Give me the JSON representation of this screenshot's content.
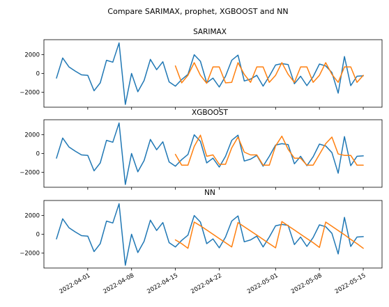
{
  "figure": {
    "suptitle": "Compare SARIMAX, prophet, XGBOOST and NN"
  },
  "colors": {
    "actual": "#1f77b4",
    "forecast": "#ff7f0e"
  },
  "chart_data": [
    {
      "type": "line",
      "title": "SARIMAX",
      "xlim": [
        "2022-03-25",
        "2022-05-18"
      ],
      "ylim": [
        -3600,
        3600
      ],
      "yticks": [
        -2000,
        0,
        2000
      ],
      "series": [
        {
          "x": [
            "2022-03-27",
            "2022-03-28",
            "2022-03-29",
            "2022-03-30",
            "2022-03-31",
            "2022-04-01",
            "2022-04-02",
            "2022-04-03",
            "2022-04-04",
            "2022-04-05",
            "2022-04-06",
            "2022-04-07",
            "2022-04-08",
            "2022-04-09",
            "2022-04-10",
            "2022-04-11",
            "2022-04-12",
            "2022-04-13",
            "2022-04-14",
            "2022-04-15",
            "2022-04-16",
            "2022-04-17",
            "2022-04-18",
            "2022-04-19",
            "2022-04-20",
            "2022-04-21",
            "2022-04-22",
            "2022-04-23",
            "2022-04-24",
            "2022-04-25",
            "2022-04-26",
            "2022-04-27",
            "2022-04-28",
            "2022-04-29",
            "2022-04-30",
            "2022-05-01",
            "2022-05-02",
            "2022-05-03",
            "2022-05-04",
            "2022-05-05",
            "2022-05-06",
            "2022-05-07",
            "2022-05-08",
            "2022-05-09",
            "2022-05-10",
            "2022-05-11",
            "2022-05-12",
            "2022-05-13",
            "2022-05-14",
            "2022-05-15"
          ],
          "values": [
            -500,
            1650,
            700,
            250,
            -150,
            -200,
            -1850,
            -1000,
            1400,
            1200,
            3250,
            -3300,
            0,
            -1950,
            -750,
            1500,
            400,
            1250,
            -900,
            -1350,
            -650,
            -100,
            2000,
            1300,
            -1000,
            -500,
            -1450,
            -300,
            1400,
            1950,
            -800,
            -600,
            -200,
            -1350,
            -300,
            900,
            1050,
            950,
            -1100,
            -300,
            -1300,
            -350,
            1000,
            800,
            100,
            -2100,
            1800,
            -1300,
            -300,
            -250
          ]
        },
        {
          "x": [
            "2022-04-15",
            "2022-04-16",
            "2022-04-17",
            "2022-04-18",
            "2022-04-19",
            "2022-04-20",
            "2022-04-21",
            "2022-04-22",
            "2022-04-23",
            "2022-04-24",
            "2022-04-25",
            "2022-04-26",
            "2022-04-27",
            "2022-04-28",
            "2022-04-29",
            "2022-04-30",
            "2022-05-01",
            "2022-05-02",
            "2022-05-03",
            "2022-05-04",
            "2022-05-05",
            "2022-05-06",
            "2022-05-07",
            "2022-05-08",
            "2022-05-09",
            "2022-05-10",
            "2022-05-11",
            "2022-05-12",
            "2022-05-13",
            "2022-05-14",
            "2022-05-15"
          ],
          "values": [
            800,
            -1000,
            -200,
            1150,
            -200,
            -1050,
            700,
            700,
            -1000,
            -950,
            1150,
            -100,
            -950,
            700,
            700,
            -950,
            -200,
            1150,
            -100,
            -950,
            700,
            700,
            -950,
            -200,
            1150,
            -100,
            -950,
            700,
            700,
            -950,
            -200
          ]
        }
      ]
    },
    {
      "type": "line",
      "title": "XGBOOST",
      "xlim": [
        "2022-03-25",
        "2022-05-18"
      ],
      "ylim": [
        -3600,
        3600
      ],
      "yticks": [
        -2000,
        0,
        2000
      ],
      "series": [
        {
          "x": [
            "2022-03-27",
            "2022-03-28",
            "2022-03-29",
            "2022-03-30",
            "2022-03-31",
            "2022-04-01",
            "2022-04-02",
            "2022-04-03",
            "2022-04-04",
            "2022-04-05",
            "2022-04-06",
            "2022-04-07",
            "2022-04-08",
            "2022-04-09",
            "2022-04-10",
            "2022-04-11",
            "2022-04-12",
            "2022-04-13",
            "2022-04-14",
            "2022-04-15",
            "2022-04-16",
            "2022-04-17",
            "2022-04-18",
            "2022-04-19",
            "2022-04-20",
            "2022-04-21",
            "2022-04-22",
            "2022-04-23",
            "2022-04-24",
            "2022-04-25",
            "2022-04-26",
            "2022-04-27",
            "2022-04-28",
            "2022-04-29",
            "2022-04-30",
            "2022-05-01",
            "2022-05-02",
            "2022-05-03",
            "2022-05-04",
            "2022-05-05",
            "2022-05-06",
            "2022-05-07",
            "2022-05-08",
            "2022-05-09",
            "2022-05-10",
            "2022-05-11",
            "2022-05-12",
            "2022-05-13",
            "2022-05-14",
            "2022-05-15"
          ],
          "values": [
            -500,
            1650,
            700,
            250,
            -150,
            -200,
            -1850,
            -1000,
            1400,
            1200,
            3250,
            -3300,
            0,
            -1950,
            -750,
            1500,
            400,
            1250,
            -900,
            -1350,
            -650,
            -100,
            2000,
            1300,
            -1000,
            -500,
            -1450,
            -300,
            1400,
            1950,
            -800,
            -600,
            -200,
            -1350,
            -300,
            900,
            1050,
            950,
            -1100,
            -300,
            -1300,
            -350,
            1000,
            800,
            100,
            -2100,
            1800,
            -1300,
            -300,
            -250
          ]
        },
        {
          "x": [
            "2022-04-15",
            "2022-04-16",
            "2022-04-17",
            "2022-04-18",
            "2022-04-19",
            "2022-04-20",
            "2022-04-21",
            "2022-04-22",
            "2022-04-23",
            "2022-04-24",
            "2022-04-25",
            "2022-04-26",
            "2022-04-27",
            "2022-04-28",
            "2022-04-29",
            "2022-04-30",
            "2022-05-01",
            "2022-05-02",
            "2022-05-03",
            "2022-05-04",
            "2022-05-05",
            "2022-05-06",
            "2022-05-07",
            "2022-05-08",
            "2022-05-09",
            "2022-05-10",
            "2022-05-11",
            "2022-05-12",
            "2022-05-13",
            "2022-05-14",
            "2022-05-15"
          ],
          "values": [
            -100,
            -1250,
            -1250,
            750,
            1950,
            -300,
            -150,
            -1150,
            -1150,
            600,
            1750,
            150,
            -150,
            -150,
            -1250,
            -1250,
            800,
            1850,
            450,
            -500,
            -500,
            -1250,
            -1250,
            -100,
            1050,
            1750,
            -50,
            -200,
            -200,
            -1250,
            -1250
          ]
        }
      ]
    },
    {
      "type": "line",
      "title": "NN",
      "xlim": [
        "2022-03-25",
        "2022-05-18"
      ],
      "ylim": [
        -3600,
        3600
      ],
      "yticks": [
        -2000,
        0,
        2000
      ],
      "xticks": [
        "2022-04-01",
        "2022-04-08",
        "2022-04-15",
        "2022-04-22",
        "2022-05-01",
        "2022-05-08",
        "2022-05-15"
      ],
      "series": [
        {
          "x": [
            "2022-03-27",
            "2022-03-28",
            "2022-03-29",
            "2022-03-30",
            "2022-03-31",
            "2022-04-01",
            "2022-04-02",
            "2022-04-03",
            "2022-04-04",
            "2022-04-05",
            "2022-04-06",
            "2022-04-07",
            "2022-04-08",
            "2022-04-09",
            "2022-04-10",
            "2022-04-11",
            "2022-04-12",
            "2022-04-13",
            "2022-04-14",
            "2022-04-15",
            "2022-04-16",
            "2022-04-17",
            "2022-04-18",
            "2022-04-19",
            "2022-04-20",
            "2022-04-21",
            "2022-04-22",
            "2022-04-23",
            "2022-04-24",
            "2022-04-25",
            "2022-04-26",
            "2022-04-27",
            "2022-04-28",
            "2022-04-29",
            "2022-04-30",
            "2022-05-01",
            "2022-05-02",
            "2022-05-03",
            "2022-05-04",
            "2022-05-05",
            "2022-05-06",
            "2022-05-07",
            "2022-05-08",
            "2022-05-09",
            "2022-05-10",
            "2022-05-11",
            "2022-05-12",
            "2022-05-13",
            "2022-05-14",
            "2022-05-15"
          ],
          "values": [
            -500,
            1650,
            700,
            250,
            -150,
            -200,
            -1850,
            -1000,
            1400,
            1200,
            3250,
            -3300,
            0,
            -1950,
            -750,
            1500,
            400,
            1250,
            -900,
            -1350,
            -650,
            -100,
            2000,
            1300,
            -1000,
            -500,
            -1450,
            -300,
            1400,
            1950,
            -800,
            -600,
            -200,
            -1350,
            -300,
            900,
            1050,
            950,
            -1100,
            -300,
            -1300,
            -350,
            1000,
            800,
            100,
            -2100,
            1800,
            -1300,
            -300,
            -250
          ]
        },
        {
          "x": [
            "2022-04-15",
            "2022-04-16",
            "2022-04-17",
            "2022-04-18",
            "2022-04-19",
            "2022-04-20",
            "2022-04-21",
            "2022-04-22",
            "2022-04-23",
            "2022-04-24",
            "2022-04-25",
            "2022-04-26",
            "2022-04-27",
            "2022-04-28",
            "2022-04-29",
            "2022-04-30",
            "2022-05-01",
            "2022-05-02",
            "2022-05-03",
            "2022-05-04",
            "2022-05-05",
            "2022-05-06",
            "2022-05-07",
            "2022-05-08",
            "2022-05-09",
            "2022-05-10",
            "2022-05-11",
            "2022-05-12",
            "2022-05-13",
            "2022-05-14",
            "2022-05-15"
          ],
          "values": [
            -600,
            -1000,
            -1500,
            1300,
            900,
            450,
            0,
            -450,
            -900,
            -1350,
            1250,
            800,
            350,
            -100,
            -550,
            -1000,
            -1450,
            1350,
            900,
            450,
            0,
            -450,
            -900,
            -1400,
            1300,
            850,
            400,
            -50,
            -550,
            -1000,
            -1500
          ]
        }
      ]
    }
  ]
}
